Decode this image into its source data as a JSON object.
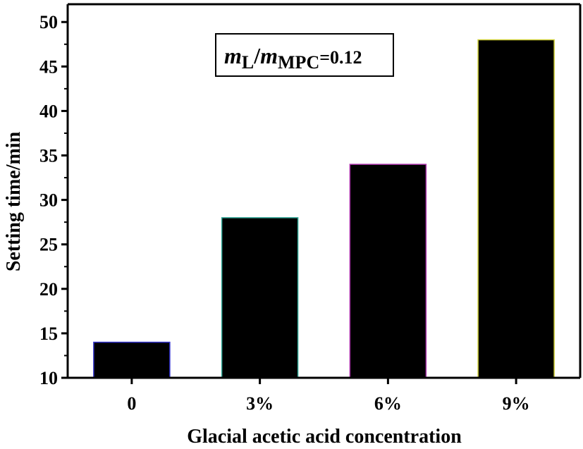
{
  "chart_data": {
    "type": "bar",
    "categories": [
      "0",
      "3%",
      "6%",
      "9%"
    ],
    "values": [
      14,
      28,
      34,
      48
    ],
    "title": "",
    "xlabel": "Glacial acetic acid concentration",
    "ylabel": "Setting time/min",
    "ylim": [
      10,
      52
    ],
    "yticks": [
      10,
      15,
      20,
      25,
      30,
      35,
      40,
      45,
      50
    ],
    "ytick_labels": [
      "10",
      "15",
      "20",
      "25",
      "30",
      "35",
      "40",
      "45",
      "50"
    ],
    "bar_color": "#000000",
    "bar_edge_colors": [
      "#3333cc",
      "#33aa99",
      "#aa33aa",
      "#cccc33"
    ],
    "grid": false,
    "annotation": {
      "m1": "m",
      "sub1": "L",
      "slash": "/",
      "m2": "m",
      "sub2": "MPC",
      "eq": "=0.12"
    }
  }
}
